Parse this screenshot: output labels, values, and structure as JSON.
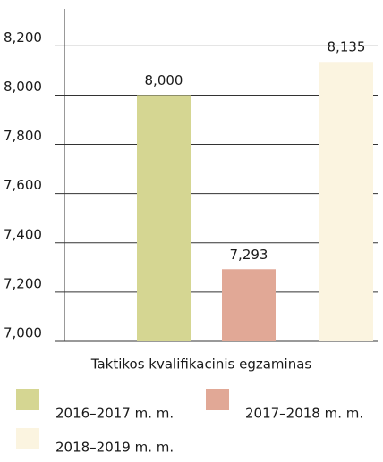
{
  "chart_data": {
    "type": "bar",
    "categories": [
      "Taktikos kvalifikacinis egzaminas"
    ],
    "series": [
      {
        "name": "2016–2017 m. m.",
        "color": "#d5d692",
        "values": [
          8000
        ],
        "value_labels": [
          "8,000"
        ]
      },
      {
        "name": "2017–2018 m. m.",
        "color": "#e1a896",
        "values": [
          7293
        ],
        "value_labels": [
          "7,293"
        ]
      },
      {
        "name": "2018–2019 m. m.",
        "color": "#fbf4e0",
        "values": [
          8135
        ],
        "value_labels": [
          "8,135"
        ]
      }
    ],
    "ylim": [
      7000,
      8350
    ],
    "yticks": [
      {
        "value": 7000,
        "label": "7,000"
      },
      {
        "value": 7200,
        "label": "7,200"
      },
      {
        "value": 7400,
        "label": "7,400"
      },
      {
        "value": 7600,
        "label": "7,600"
      },
      {
        "value": 7800,
        "label": "7,800"
      },
      {
        "value": 8000,
        "label": "8,000"
      },
      {
        "value": 8200,
        "label": "8,200"
      }
    ],
    "grid": true
  }
}
